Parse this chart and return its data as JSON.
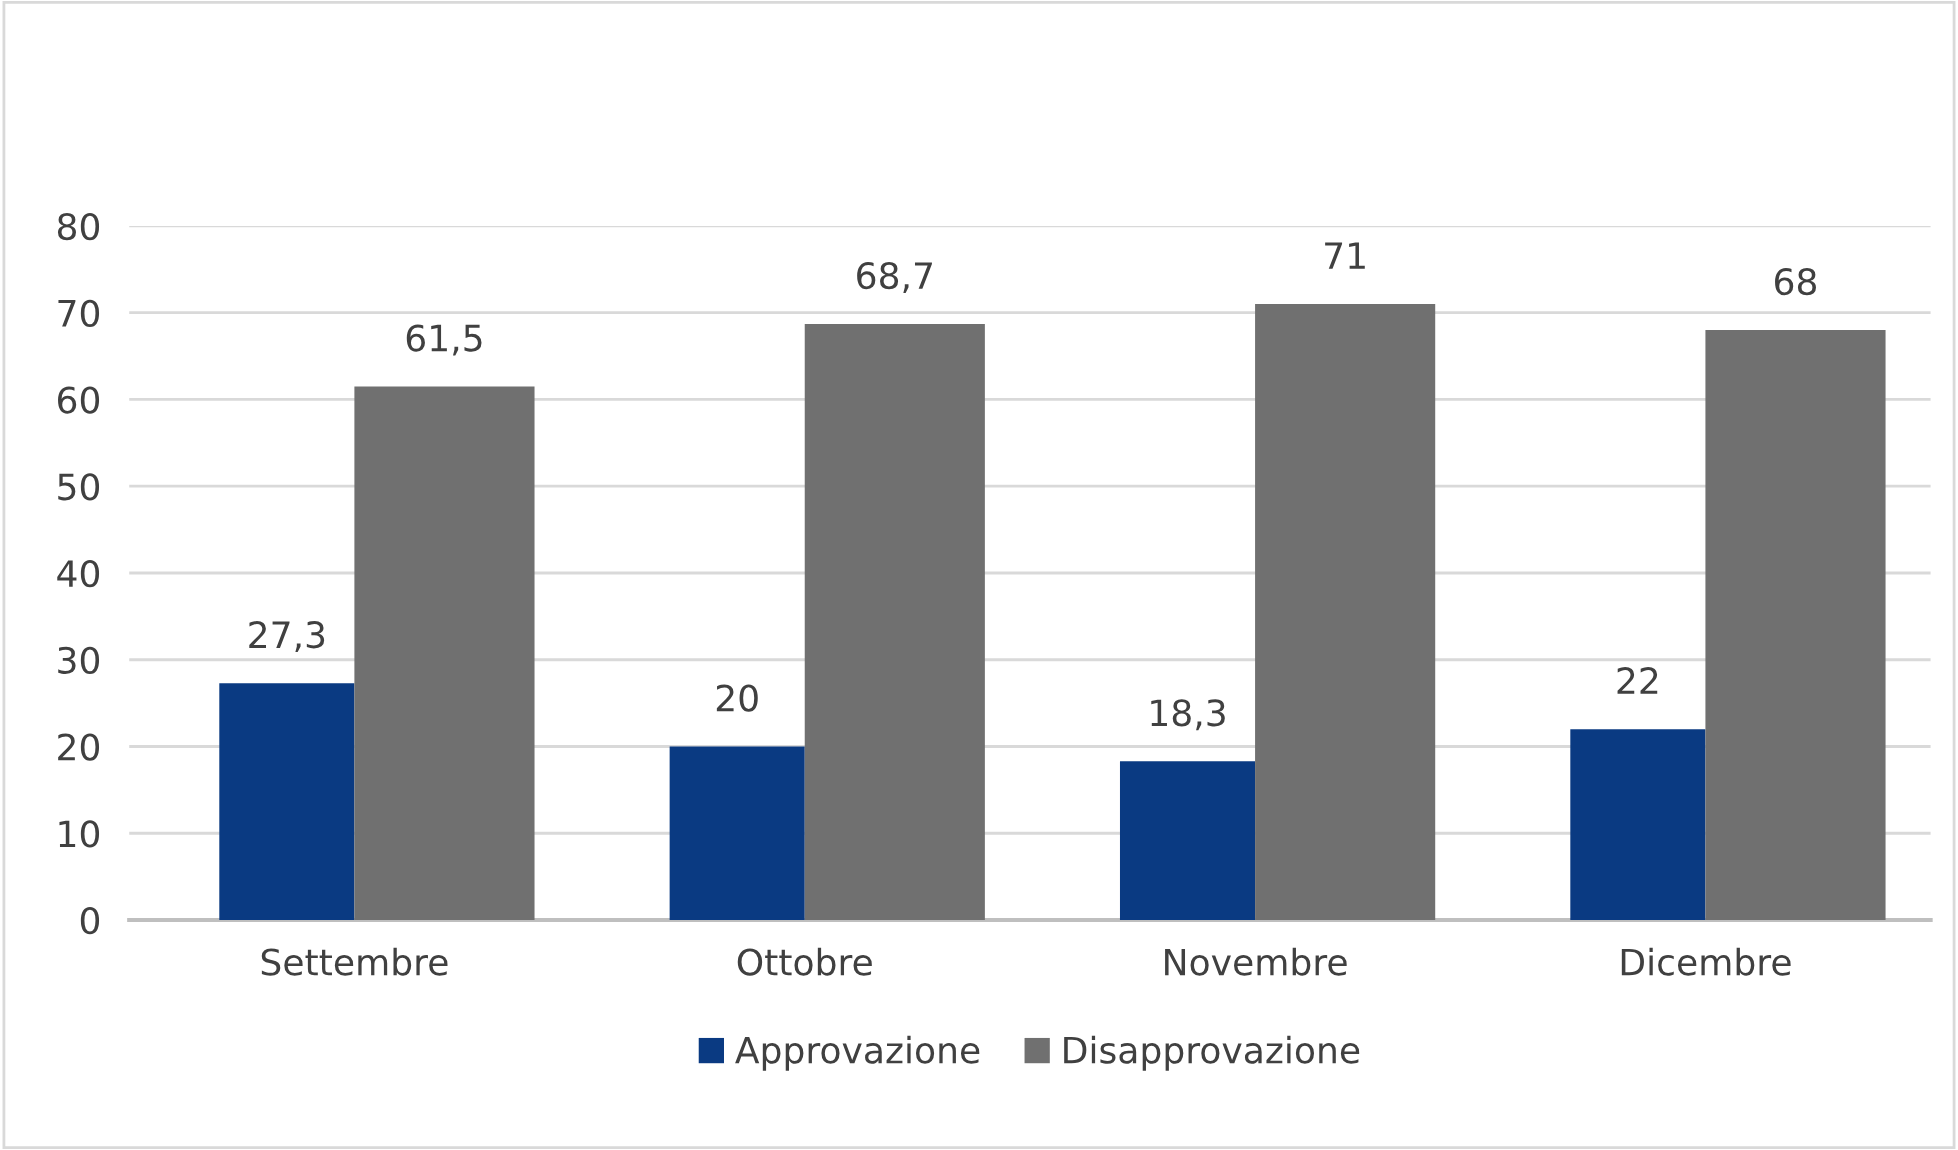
{
  "chart_data": {
    "type": "bar",
    "categories": [
      "Settembre",
      "Ottobre",
      "Novembre",
      "Dicembre"
    ],
    "series": [
      {
        "name": "Approvazione",
        "color": "#0a3a82",
        "values": [
          27.3,
          20,
          18.3,
          22
        ],
        "value_labels": [
          "27,3",
          "20",
          "18,3",
          "22"
        ]
      },
      {
        "name": "Disapprovazione",
        "color": "#707070",
        "values": [
          61.5,
          68.7,
          71,
          68
        ],
        "value_labels": [
          "61,5",
          "68,7",
          "71",
          "68"
        ]
      }
    ],
    "ylim": [
      0,
      80
    ],
    "yticks": [
      0,
      10,
      20,
      30,
      40,
      50,
      60,
      70,
      80
    ],
    "grid": "y",
    "legend": "bottom"
  }
}
